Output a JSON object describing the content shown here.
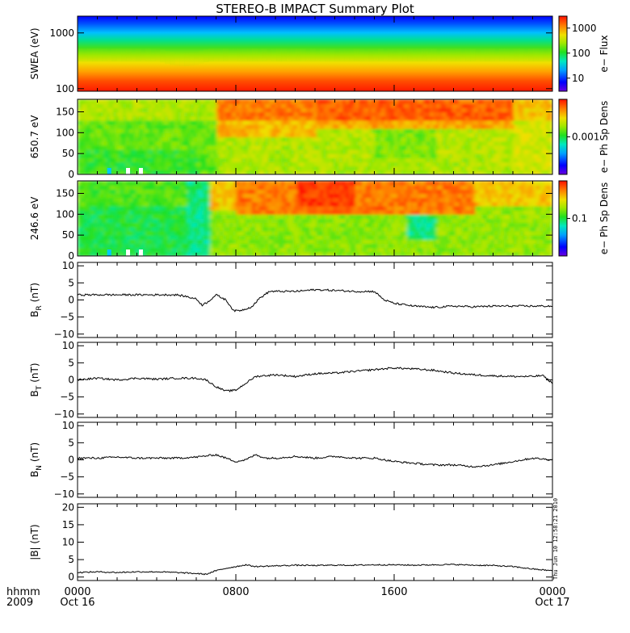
{
  "chart_data": {
    "title": "STEREO-B IMPACT Summary Plot",
    "time_axis": {
      "label": "hhmm",
      "year": "2009",
      "ticks": [
        {
          "t": 0,
          "label": "0000",
          "sub": "Oct 16"
        },
        {
          "t": 8,
          "label": "0800",
          "sub": ""
        },
        {
          "t": 16,
          "label": "1600",
          "sub": ""
        },
        {
          "t": 24,
          "label": "0000",
          "sub": "Oct 17"
        }
      ],
      "range_hours": [
        0,
        24
      ]
    },
    "timestamp": "Thu Jun 10 12:58:21 2010",
    "panels": [
      {
        "type": "heatmap",
        "ylabel": "SWEA (eV)",
        "yscale": "log",
        "ylim": [
          90,
          2000
        ],
        "yticks": [
          {
            "v": 100,
            "label": "100"
          },
          {
            "v": 1000,
            "label": "1000"
          }
        ],
        "colorbar": {
          "label": "e− Flux",
          "scale": "log",
          "range": [
            3,
            3000
          ],
          "ticks": [
            {
              "v": 10,
              "label": "10"
            },
            {
              "v": 100,
              "label": "100"
            },
            {
              "v": 1000,
              "label": "1000"
            }
          ]
        }
      },
      {
        "type": "heatmap",
        "ylabel": "650.7 eV",
        "ylim": [
          0,
          180
        ],
        "yticks": [
          {
            "v": 0,
            "label": "0"
          },
          {
            "v": 50,
            "label": "50"
          },
          {
            "v": 100,
            "label": "100"
          },
          {
            "v": 150,
            "label": "150"
          }
        ],
        "colorbar": {
          "label": "e− Ph Sp Dens",
          "scale": "log",
          "range": [
            0.0001,
            0.01
          ],
          "ticks": [
            {
              "v": 0.001,
              "label": "0.001"
            }
          ]
        }
      },
      {
        "type": "heatmap",
        "ylabel": "246.6 eV",
        "ylim": [
          0,
          180
        ],
        "yticks": [
          {
            "v": 0,
            "label": "0"
          },
          {
            "v": 50,
            "label": "50"
          },
          {
            "v": 100,
            "label": "100"
          },
          {
            "v": 150,
            "label": "150"
          }
        ],
        "colorbar": {
          "label": "e− Ph Sp Dens",
          "scale": "log",
          "range": [
            0.01,
            1
          ],
          "ticks": [
            {
              "v": 0.1,
              "label": "0.1"
            }
          ]
        }
      },
      {
        "type": "line",
        "ylabel": "B",
        "ylabel_sub": "R",
        "ylabel_unit": "(nT)",
        "ylim": [
          -11,
          11
        ],
        "yticks": [
          {
            "v": -10,
            "label": "−10"
          },
          {
            "v": -5,
            "label": "−5"
          },
          {
            "v": 0,
            "label": "0"
          },
          {
            "v": 5,
            "label": "5"
          },
          {
            "v": 10,
            "label": "10"
          }
        ],
        "x": [
          0,
          2,
          4,
          4.5,
          5,
          5.5,
          6,
          6.3,
          6.6,
          7,
          7.5,
          7.9,
          8.3,
          8.8,
          9.2,
          9.7,
          10,
          11,
          12,
          13,
          14,
          15,
          15.5,
          16,
          17,
          18,
          19,
          20,
          21,
          22,
          23,
          24
        ],
        "y": [
          1.5,
          1.5,
          1.5,
          1.5,
          1.5,
          1.0,
          0.3,
          -1.5,
          -0.5,
          1.5,
          0.0,
          -3.2,
          -3.0,
          -2.0,
          0.5,
          2.5,
          2.5,
          2.5,
          3.0,
          2.8,
          2.5,
          2.5,
          0.0,
          -1.0,
          -1.8,
          -2.2,
          -1.8,
          -2.0,
          -1.8,
          -1.8,
          -1.8,
          -1.8
        ]
      },
      {
        "type": "line",
        "ylabel": "B",
        "ylabel_sub": "T",
        "ylabel_unit": "(nT)",
        "ylim": [
          -11,
          11
        ],
        "yticks": [
          {
            "v": -10,
            "label": "−10"
          },
          {
            "v": -5,
            "label": "−5"
          },
          {
            "v": 0,
            "label": "0"
          },
          {
            "v": 5,
            "label": "5"
          },
          {
            "v": 10,
            "label": "10"
          }
        ],
        "x": [
          0,
          1,
          2,
          3,
          4,
          5,
          6,
          6.5,
          7,
          7.5,
          8,
          8.5,
          9,
          10,
          11,
          12,
          13,
          14,
          15,
          16,
          17,
          18,
          19,
          20,
          21,
          22,
          23,
          23.5,
          24
        ],
        "y": [
          0.0,
          0.5,
          0.0,
          0.5,
          0.2,
          0.5,
          0.5,
          0.0,
          -2.0,
          -3.3,
          -3.0,
          -1.0,
          1.0,
          1.5,
          1.0,
          1.8,
          2.0,
          2.5,
          3.0,
          3.5,
          3.2,
          2.8,
          2.0,
          1.5,
          1.2,
          1.0,
          1.0,
          1.3,
          -1.0
        ]
      },
      {
        "type": "line",
        "ylabel": "B",
        "ylabel_sub": "N",
        "ylabel_unit": "(nT)",
        "ylim": [
          -11,
          11
        ],
        "yticks": [
          {
            "v": -10,
            "label": "−10"
          },
          {
            "v": -5,
            "label": "−5"
          },
          {
            "v": 0,
            "label": "0"
          },
          {
            "v": 5,
            "label": "5"
          },
          {
            "v": 10,
            "label": "10"
          }
        ],
        "x": [
          0,
          1,
          2,
          3,
          4,
          5,
          6,
          7,
          7.5,
          8,
          8.5,
          9,
          9.5,
          10,
          11,
          12,
          13,
          14,
          15,
          16,
          17,
          18,
          19,
          20,
          21,
          22,
          23,
          24
        ],
        "y": [
          0.5,
          0.5,
          0.8,
          0.5,
          0.5,
          0.5,
          0.8,
          1.5,
          0.5,
          -0.5,
          0.0,
          1.5,
          0.5,
          0.5,
          1.0,
          0.5,
          1.0,
          0.5,
          0.5,
          -0.5,
          -1.0,
          -1.5,
          -1.5,
          -2.0,
          -1.5,
          -0.5,
          0.5,
          0.0
        ]
      },
      {
        "type": "line",
        "ylabel": "|B| (nT)",
        "ylim": [
          -1,
          21
        ],
        "yticks": [
          {
            "v": 0,
            "label": "0"
          },
          {
            "v": 5,
            "label": "5"
          },
          {
            "v": 10,
            "label": "10"
          },
          {
            "v": 15,
            "label": "15"
          },
          {
            "v": 20,
            "label": "20"
          }
        ],
        "x": [
          0,
          1,
          2,
          3,
          4,
          5,
          6,
          6.5,
          7,
          7.5,
          8,
          8.5,
          9,
          10,
          11,
          12,
          13,
          14,
          15,
          16,
          17,
          18,
          19,
          20,
          21,
          22,
          23,
          24
        ],
        "y": [
          1.3,
          1.5,
          1.3,
          1.5,
          1.5,
          1.3,
          1.0,
          0.8,
          1.8,
          2.5,
          3.0,
          3.5,
          3.0,
          3.2,
          3.4,
          3.3,
          3.4,
          3.4,
          3.5,
          3.5,
          3.4,
          3.5,
          3.6,
          3.4,
          3.3,
          3.0,
          2.3,
          1.8
        ]
      }
    ]
  }
}
